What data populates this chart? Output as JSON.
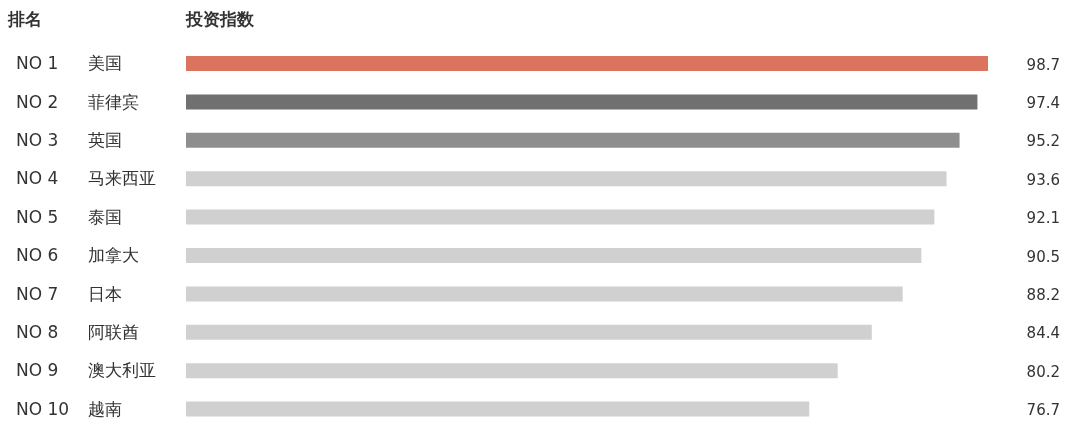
{
  "chart_data": {
    "type": "bar",
    "orientation": "horizontal",
    "ylabel": "排名",
    "xlabel": "投资指数",
    "categories": [
      "美国",
      "菲律宾",
      "英国",
      "马来西亚",
      "泰国",
      "加拿大",
      "日本",
      "阿联酋",
      "澳大利亚",
      "越南"
    ],
    "values": [
      98.7,
      97.4,
      95.2,
      93.6,
      92.1,
      90.5,
      88.2,
      84.4,
      80.2,
      76.7
    ],
    "colors": [
      "#db735f",
      "#707070",
      "#8e8e8e",
      "#d0d0d0",
      "#d0d0d0",
      "#d0d0d0",
      "#d0d0d0",
      "#d0d0d0",
      "#d0d0d0",
      "#d0d0d0"
    ],
    "tick_labels": "y",
    "data_labels": true,
    "grid": false,
    "legend": false,
    "annotations": [
      "NO 1",
      "NO 2",
      "NO 3",
      "NO 4",
      "NO 5",
      "NO 6",
      "NO 7",
      "NO 8",
      "NO 9",
      "NO 10"
    ]
  }
}
